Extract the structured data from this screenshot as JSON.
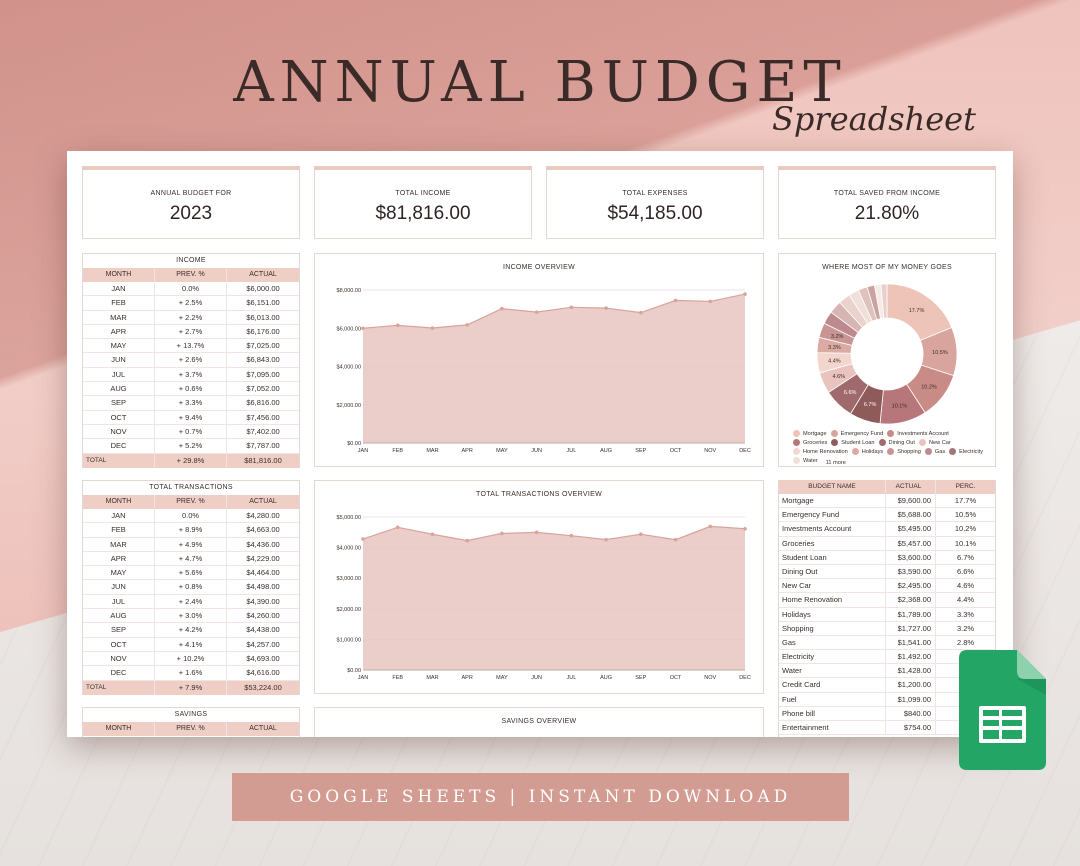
{
  "header": {
    "title": "ANNUAL BUDGET",
    "subtitle": "Spreadsheet"
  },
  "kpis": [
    {
      "label": "ANNUAL BUDGET FOR",
      "value": "2023"
    },
    {
      "label": "TOTAL INCOME",
      "value": "$81,816.00"
    },
    {
      "label": "TOTAL EXPENSES",
      "value": "$54,185.00"
    },
    {
      "label": "TOTAL SAVED FROM INCOME",
      "value": "21.80%"
    }
  ],
  "income": {
    "title": "INCOME",
    "columns": [
      "MONTH",
      "PREV. %",
      "ACTUAL"
    ],
    "rows": [
      [
        "JAN",
        "0.0%",
        "$6,000.00"
      ],
      [
        "FEB",
        "+ 2.5%",
        "$6,151.00"
      ],
      [
        "MAR",
        "+ 2.2%",
        "$6,013.00"
      ],
      [
        "APR",
        "+ 2.7%",
        "$6,176.00"
      ],
      [
        "MAY",
        "+ 13.7%",
        "$7,025.00"
      ],
      [
        "JUN",
        "+ 2.6%",
        "$6,843.00"
      ],
      [
        "JUL",
        "+ 3.7%",
        "$7,095.00"
      ],
      [
        "AUG",
        "+ 0.6%",
        "$7,052.00"
      ],
      [
        "SEP",
        "+ 3.3%",
        "$6,816.00"
      ],
      [
        "OCT",
        "+ 9.4%",
        "$7,456.00"
      ],
      [
        "NOV",
        "+ 0.7%",
        "$7,402.00"
      ],
      [
        "DEC",
        "+ 5.2%",
        "$7,787.00"
      ]
    ],
    "total": [
      "TOTAL",
      "+ 29.8%",
      "$81,816.00"
    ]
  },
  "transactions": {
    "title": "TOTAL TRANSACTIONS",
    "columns": [
      "MONTH",
      "PREV. %",
      "ACTUAL"
    ],
    "rows": [
      [
        "JAN",
        "0.0%",
        "$4,280.00"
      ],
      [
        "FEB",
        "+ 8.9%",
        "$4,663.00"
      ],
      [
        "MAR",
        "+ 4.9%",
        "$4,436.00"
      ],
      [
        "APR",
        "+ 4.7%",
        "$4,229.00"
      ],
      [
        "MAY",
        "+ 5.6%",
        "$4,464.00"
      ],
      [
        "JUN",
        "+ 0.8%",
        "$4,498.00"
      ],
      [
        "JUL",
        "+ 2.4%",
        "$4,390.00"
      ],
      [
        "AUG",
        "+ 3.0%",
        "$4,260.00"
      ],
      [
        "SEP",
        "+ 4.2%",
        "$4,438.00"
      ],
      [
        "OCT",
        "+ 4.1%",
        "$4,257.00"
      ],
      [
        "NOV",
        "+ 10.2%",
        "$4,693.00"
      ],
      [
        "DEC",
        "+ 1.6%",
        "$4,616.00"
      ]
    ],
    "total": [
      "TOTAL",
      "+ 7.9%",
      "$53,224.00"
    ]
  },
  "savings": {
    "title": "SAVINGS",
    "columns": [
      "MONTH",
      "PREV. %",
      "ACTUAL"
    ]
  },
  "charts": {
    "income_title": "INCOME OVERVIEW",
    "transactions_title": "TOTAL TRANSACTIONS OVERVIEW",
    "savings_title": "SAVINGS OVERVIEW",
    "donut_title": "WHERE MOST OF MY MONEY GOES"
  },
  "chart_data": [
    {
      "type": "area",
      "title": "INCOME OVERVIEW",
      "categories": [
        "JAN",
        "FEB",
        "MAR",
        "APR",
        "MAY",
        "JUN",
        "JUL",
        "AUG",
        "SEP",
        "OCT",
        "NOV",
        "DEC"
      ],
      "values": [
        6000,
        6151,
        6013,
        6176,
        7025,
        6843,
        7095,
        7052,
        6816,
        7456,
        7402,
        7787
      ],
      "yticks": [
        "$0.00",
        "$2,000.00",
        "$4,000.00",
        "$6,000.00",
        "$8,000.00"
      ],
      "ylim": [
        0,
        8000
      ],
      "grid": true,
      "color": "#e8c6c1",
      "line": "#d9a39b"
    },
    {
      "type": "area",
      "title": "TOTAL TRANSACTIONS OVERVIEW",
      "categories": [
        "JAN",
        "FEB",
        "MAR",
        "APR",
        "MAY",
        "JUN",
        "JUL",
        "AUG",
        "SEP",
        "OCT",
        "NOV",
        "DEC"
      ],
      "values": [
        4280,
        4663,
        4436,
        4229,
        4464,
        4498,
        4390,
        4260,
        4438,
        4257,
        4693,
        4616
      ],
      "yticks": [
        "$0.00",
        "$1,000.00",
        "$2,000.00",
        "$3,000.00",
        "$4,000.00",
        "$5,000.00"
      ],
      "ylim": [
        0,
        5000
      ],
      "grid": true,
      "color": "#e8c6c1",
      "line": "#d9a39b"
    },
    {
      "type": "pie",
      "title": "WHERE MOST OF MY MONEY GOES",
      "slices": [
        {
          "label": "17.7%",
          "value": 17.7,
          "color": "#eec4b8"
        },
        {
          "label": "10.5%",
          "value": 10.5,
          "color": "#d9a49d"
        },
        {
          "label": "10.2%",
          "value": 10.2,
          "color": "#c98b86"
        },
        {
          "label": "10.1%",
          "value": 10.1,
          "color": "#b7767a"
        },
        {
          "label": "6.7%",
          "value": 6.7,
          "color": "#8f5a5a"
        },
        {
          "label": "6.6%",
          "value": 6.6,
          "color": "#a06a6c"
        },
        {
          "label": "4.6%",
          "value": 4.6,
          "color": "#e9c3bd"
        },
        {
          "label": "4.4%",
          "value": 4.4,
          "color": "#f3d7cf"
        },
        {
          "label": "3.3%",
          "value": 3.3,
          "color": "#dcaaa5"
        },
        {
          "label": "3.2%",
          "value": 3.2,
          "color": "#c89592"
        },
        {
          "label": "",
          "value": 2.8,
          "color": "#bd8a90"
        },
        {
          "label": "",
          "value": 2.8,
          "color": "#d7b5b2"
        },
        {
          "label": "",
          "value": 2.6,
          "color": "#ead2cd"
        },
        {
          "label": "",
          "value": 2.2,
          "color": "#f1dfdb"
        },
        {
          "label": "",
          "value": 2.0,
          "color": "#dec2be"
        },
        {
          "label": "",
          "value": 1.6,
          "color": "#caa3a1"
        },
        {
          "label": "",
          "value": 1.4,
          "color": "#f7e9e6"
        },
        {
          "label": "",
          "value": 1.3,
          "color": "#e7cfcb"
        }
      ]
    }
  ],
  "donut_legend": [
    {
      "name": "Mortgage",
      "color": "#eec4b8"
    },
    {
      "name": "Emergency Fund",
      "color": "#d9a49d"
    },
    {
      "name": "Investments Account",
      "color": "#c98b86"
    },
    {
      "name": "Groceries",
      "color": "#b7767a"
    },
    {
      "name": "Student Loan",
      "color": "#8f5a5a"
    },
    {
      "name": "Dining Out",
      "color": "#a06a6c"
    },
    {
      "name": "New Car",
      "color": "#e9c3bd"
    },
    {
      "name": "Home Renovation",
      "color": "#f3d7cf"
    },
    {
      "name": "Holidays",
      "color": "#dcaaa5"
    },
    {
      "name": "Shopping",
      "color": "#c89592"
    },
    {
      "name": "Gas",
      "color": "#bd8a90"
    },
    {
      "name": "Electricity",
      "color": "#a37478"
    },
    {
      "name": "Water",
      "color": "#f1dfdb"
    }
  ],
  "donut_more": "11 more",
  "budget": {
    "columns": [
      "BUDGET NAME",
      "ACTUAL",
      "PERC."
    ],
    "rows": [
      [
        "Mortgage",
        "$9,600.00",
        "17.7%"
      ],
      [
        "Emergency Fund",
        "$5,688.00",
        "10.5%"
      ],
      [
        "Investments Account",
        "$5,495.00",
        "10.2%"
      ],
      [
        "Groceries",
        "$5,457.00",
        "10.1%"
      ],
      [
        "Student Loan",
        "$3,600.00",
        "6.7%"
      ],
      [
        "Dining Out",
        "$3,590.00",
        "6.6%"
      ],
      [
        "New Car",
        "$2,495.00",
        "4.6%"
      ],
      [
        "Home Renovation",
        "$2,368.00",
        "4.4%"
      ],
      [
        "Holidays",
        "$1,789.00",
        "3.3%"
      ],
      [
        "Shopping",
        "$1,727.00",
        "3.2%"
      ],
      [
        "Gas",
        "$1,541.00",
        "2.8%"
      ],
      [
        "Electricity",
        "$1,492.00",
        ""
      ],
      [
        "Water",
        "$1,428.00",
        ""
      ],
      [
        "Credit Card",
        "$1,200.00",
        ""
      ],
      [
        "Fuel",
        "$1,099.00",
        ""
      ],
      [
        "Phone bill",
        "$840.00",
        ""
      ],
      [
        "Entertainment",
        "$754.00",
        ""
      ]
    ]
  },
  "banner": {
    "text": "GOOGLE SHEETS | INSTANT DOWNLOAD"
  },
  "colors": {
    "accent": "#efcfc5",
    "banner": "#d39c92",
    "sheets_green": "#23a566"
  }
}
